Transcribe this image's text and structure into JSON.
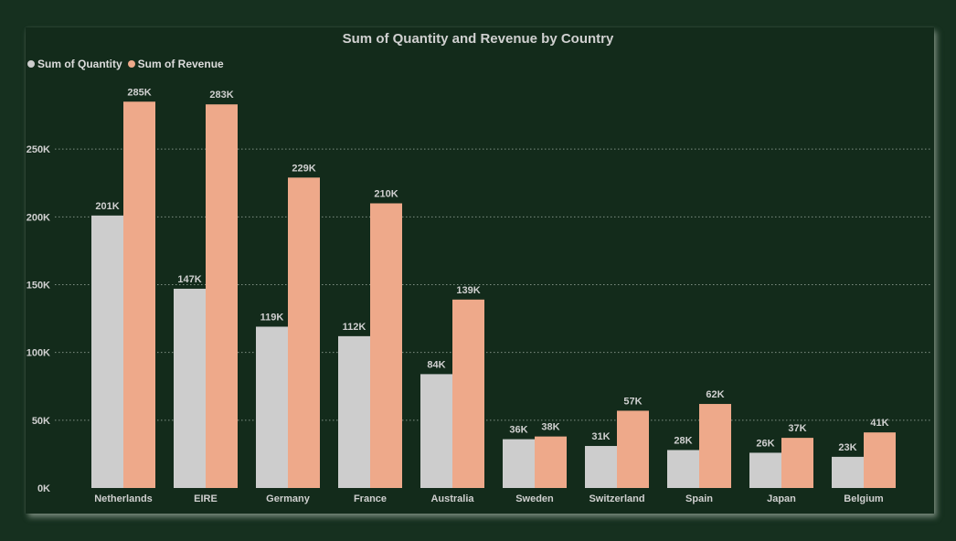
{
  "chart_data": {
    "type": "bar",
    "title": "Sum of Quantity and Revenue by Country",
    "xlabel": "",
    "ylabel": "",
    "categories": [
      "Netherlands",
      "EIRE",
      "Germany",
      "France",
      "Australia",
      "Sweden",
      "Switzerland",
      "Spain",
      "Japan",
      "Belgium"
    ],
    "series": [
      {
        "name": "Sum of Quantity",
        "color": "#cdcdcd",
        "values": [
          201000,
          147000,
          119000,
          112000,
          84000,
          36000,
          31000,
          28000,
          26000,
          23000
        ],
        "labels": [
          "201K",
          "147K",
          "119K",
          "112K",
          "84K",
          "36K",
          "31K",
          "28K",
          "26K",
          "23K"
        ]
      },
      {
        "name": "Sum of Revenue",
        "color": "#eea98a",
        "values": [
          285000,
          283000,
          229000,
          210000,
          139000,
          38000,
          57000,
          62000,
          37000,
          41000
        ],
        "labels": [
          "285K",
          "283K",
          "229K",
          "210K",
          "139K",
          "38K",
          "57K",
          "62K",
          "37K",
          "41K"
        ]
      }
    ],
    "ylim": [
      0,
      300000
    ],
    "yticks": [
      0,
      50000,
      100000,
      150000,
      200000,
      250000
    ],
    "ytick_labels": [
      "0K",
      "50K",
      "100K",
      "150K",
      "200K",
      "250K"
    ],
    "grid": true,
    "legend_position": "top-left"
  },
  "colors": {
    "background": "#16301f",
    "panel": "#132b1b",
    "text": "#d0d0d0",
    "gridline": "#7f8f84"
  }
}
